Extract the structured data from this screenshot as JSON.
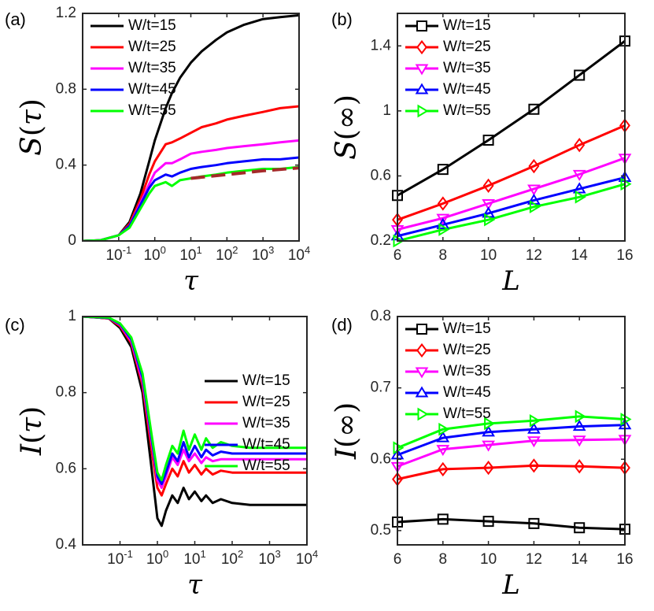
{
  "chart_data": [
    {
      "panel": "(a)",
      "type": "line",
      "ylabel_symbol": "S",
      "ylabel_arg": "τ",
      "xlabel": "τ",
      "xscale": "log",
      "xlim": [
        0.01,
        10000
      ],
      "ylim": [
        0,
        1.2
      ],
      "xticks": [
        {
          "exp": "-1",
          "value": 0.1
        },
        {
          "exp": "0",
          "value": 1
        },
        {
          "exp": "1",
          "value": 10
        },
        {
          "exp": "2",
          "value": 100
        },
        {
          "exp": "3",
          "value": 1000
        },
        {
          "exp": "4",
          "value": 10000
        }
      ],
      "yticks": [
        {
          "label": "0",
          "value": 0
        },
        {
          "label": "0.4",
          "value": 0.4
        },
        {
          "label": "0.8",
          "value": 0.8
        },
        {
          "label": "1.2",
          "value": 1.2
        }
      ],
      "legend_position": "top-left",
      "series": [
        {
          "name": "W/t=15",
          "color": "#000000",
          "x": [
            0.01,
            0.03,
            0.1,
            0.2,
            0.4,
            0.7,
            1,
            2,
            3,
            5,
            10,
            20,
            50,
            100,
            300,
            1000,
            3000,
            10000
          ],
          "y": [
            0,
            0.003,
            0.03,
            0.1,
            0.25,
            0.42,
            0.53,
            0.7,
            0.78,
            0.86,
            0.94,
            1.0,
            1.06,
            1.1,
            1.14,
            1.17,
            1.18,
            1.19
          ]
        },
        {
          "name": "W/t=25",
          "color": "#ff0000",
          "x": [
            0.01,
            0.03,
            0.1,
            0.2,
            0.4,
            0.7,
            1,
            2,
            3,
            5,
            10,
            20,
            50,
            100,
            300,
            1000,
            3000,
            10000
          ],
          "y": [
            0,
            0.003,
            0.03,
            0.09,
            0.22,
            0.35,
            0.42,
            0.51,
            0.52,
            0.54,
            0.57,
            0.6,
            0.62,
            0.64,
            0.66,
            0.68,
            0.7,
            0.71
          ]
        },
        {
          "name": "W/t=35",
          "color": "#ff00ff",
          "x": [
            0.01,
            0.03,
            0.1,
            0.2,
            0.4,
            0.7,
            1,
            2,
            3,
            5,
            10,
            20,
            50,
            100,
            300,
            1000,
            3000,
            10000
          ],
          "y": [
            0,
            0.003,
            0.03,
            0.08,
            0.2,
            0.3,
            0.36,
            0.41,
            0.41,
            0.43,
            0.46,
            0.47,
            0.48,
            0.49,
            0.5,
            0.51,
            0.52,
            0.53
          ]
        },
        {
          "name": "W/t=45",
          "color": "#0000ff",
          "x": [
            0.01,
            0.03,
            0.1,
            0.2,
            0.4,
            0.7,
            1,
            2,
            3,
            5,
            10,
            20,
            50,
            100,
            300,
            1000,
            3000,
            10000
          ],
          "y": [
            0,
            0.003,
            0.03,
            0.08,
            0.19,
            0.28,
            0.32,
            0.35,
            0.34,
            0.36,
            0.38,
            0.39,
            0.4,
            0.41,
            0.42,
            0.43,
            0.43,
            0.44
          ]
        },
        {
          "name": "W/t=55",
          "color": "#00ff00",
          "x": [
            0.01,
            0.03,
            0.1,
            0.2,
            0.4,
            0.7,
            1,
            2,
            3,
            5,
            10,
            20,
            50,
            100,
            300,
            1000,
            3000,
            10000
          ],
          "y": [
            0,
            0.003,
            0.03,
            0.07,
            0.17,
            0.25,
            0.29,
            0.31,
            0.29,
            0.32,
            0.33,
            0.34,
            0.35,
            0.36,
            0.37,
            0.38,
            0.38,
            0.39
          ]
        }
      ],
      "fit_line": {
        "color": "#a52a2a",
        "style": "dashed",
        "x": [
          10,
          100,
          1000,
          10000
        ],
        "y": [
          0.33,
          0.35,
          0.37,
          0.385
        ]
      }
    },
    {
      "panel": "(b)",
      "type": "line",
      "ylabel_symbol": "S",
      "ylabel_arg": "∞",
      "xlabel": "L",
      "xscale": "linear",
      "xlim": [
        6,
        16
      ],
      "ylim": [
        0.2,
        1.6
      ],
      "xticks": [
        {
          "label": "6",
          "value": 6
        },
        {
          "label": "8",
          "value": 8
        },
        {
          "label": "10",
          "value": 10
        },
        {
          "label": "12",
          "value": 12
        },
        {
          "label": "14",
          "value": 14
        },
        {
          "label": "16",
          "value": 16
        }
      ],
      "yticks": [
        {
          "label": "0.2",
          "value": 0.2
        },
        {
          "label": "0.6",
          "value": 0.6
        },
        {
          "label": "1",
          "value": 1.0
        },
        {
          "label": "1.4",
          "value": 1.4
        }
      ],
      "legend_position": "top-left",
      "series": [
        {
          "name": "W/t=15",
          "color": "#000000",
          "marker": "square",
          "x": [
            6,
            8,
            10,
            12,
            14,
            16
          ],
          "y": [
            0.48,
            0.64,
            0.82,
            1.01,
            1.22,
            1.43
          ]
        },
        {
          "name": "W/t=25",
          "color": "#ff0000",
          "marker": "diamond",
          "x": [
            6,
            8,
            10,
            12,
            14,
            16
          ],
          "y": [
            0.33,
            0.43,
            0.54,
            0.66,
            0.79,
            0.91
          ]
        },
        {
          "name": "W/t=35",
          "color": "#ff00ff",
          "marker": "triangle-down",
          "x": [
            6,
            8,
            10,
            12,
            14,
            16
          ],
          "y": [
            0.27,
            0.34,
            0.43,
            0.52,
            0.61,
            0.71
          ]
        },
        {
          "name": "W/t=45",
          "color": "#0000ff",
          "marker": "triangle-up",
          "x": [
            6,
            8,
            10,
            12,
            14,
            16
          ],
          "y": [
            0.23,
            0.3,
            0.37,
            0.45,
            0.52,
            0.59
          ]
        },
        {
          "name": "W/t=55",
          "color": "#00ff00",
          "marker": "triangle-right",
          "x": [
            6,
            8,
            10,
            12,
            14,
            16
          ],
          "y": [
            0.2,
            0.27,
            0.33,
            0.41,
            0.47,
            0.55
          ]
        }
      ]
    },
    {
      "panel": "(c)",
      "type": "line",
      "ylabel_symbol": "I",
      "ylabel_arg": "τ",
      "xlabel": "τ",
      "xscale": "log",
      "xlim": [
        0.01,
        10000
      ],
      "ylim": [
        0.4,
        1.0
      ],
      "xticks": [
        {
          "exp": "-1",
          "value": 0.1
        },
        {
          "exp": "0",
          "value": 1
        },
        {
          "exp": "1",
          "value": 10
        },
        {
          "exp": "2",
          "value": 100
        },
        {
          "exp": "3",
          "value": 1000
        },
        {
          "exp": "4",
          "value": 10000
        }
      ],
      "yticks": [
        {
          "label": "0.4",
          "value": 0.4
        },
        {
          "label": "0.6",
          "value": 0.6
        },
        {
          "label": "0.8",
          "value": 0.8
        },
        {
          "label": "1",
          "value": 1.0
        }
      ],
      "legend_position": "top-right",
      "series": [
        {
          "name": "W/t=15",
          "color": "#000000",
          "x": [
            0.01,
            0.05,
            0.1,
            0.2,
            0.4,
            0.7,
            1,
            1.3,
            1.7,
            2.5,
            3.5,
            5,
            7,
            10,
            15,
            20,
            30,
            50,
            100,
            300,
            1000,
            3000,
            10000
          ],
          "y": [
            1.0,
            0.995,
            0.97,
            0.92,
            0.8,
            0.6,
            0.47,
            0.45,
            0.49,
            0.53,
            0.51,
            0.55,
            0.52,
            0.54,
            0.515,
            0.53,
            0.51,
            0.52,
            0.51,
            0.505,
            0.505,
            0.505,
            0.505
          ]
        },
        {
          "name": "W/t=25",
          "color": "#ff0000",
          "x": [
            0.01,
            0.05,
            0.1,
            0.2,
            0.4,
            0.7,
            1,
            1.3,
            1.7,
            2.5,
            3.5,
            5,
            7,
            10,
            15,
            20,
            30,
            50,
            100,
            300,
            1000,
            3000,
            10000
          ],
          "y": [
            1.0,
            0.995,
            0.975,
            0.93,
            0.82,
            0.65,
            0.55,
            0.53,
            0.56,
            0.6,
            0.58,
            0.62,
            0.59,
            0.61,
            0.585,
            0.6,
            0.585,
            0.595,
            0.59,
            0.59,
            0.59,
            0.59,
            0.59
          ]
        },
        {
          "name": "W/t=35",
          "color": "#ff00ff",
          "x": [
            0.01,
            0.05,
            0.1,
            0.2,
            0.4,
            0.7,
            1,
            1.3,
            1.7,
            2.5,
            3.5,
            5,
            7,
            10,
            15,
            20,
            30,
            50,
            100,
            300,
            1000,
            3000,
            10000
          ],
          "y": [
            1.0,
            0.996,
            0.978,
            0.935,
            0.83,
            0.67,
            0.57,
            0.55,
            0.58,
            0.63,
            0.61,
            0.65,
            0.62,
            0.64,
            0.615,
            0.63,
            0.62,
            0.625,
            0.625,
            0.625,
            0.625,
            0.625,
            0.625
          ]
        },
        {
          "name": "W/t=45",
          "color": "#0000ff",
          "x": [
            0.01,
            0.05,
            0.1,
            0.2,
            0.4,
            0.7,
            1,
            1.3,
            1.7,
            2.5,
            3.5,
            5,
            7,
            10,
            15,
            20,
            30,
            50,
            100,
            300,
            1000,
            3000,
            10000
          ],
          "y": [
            1.0,
            0.996,
            0.98,
            0.94,
            0.84,
            0.68,
            0.58,
            0.56,
            0.59,
            0.64,
            0.62,
            0.67,
            0.63,
            0.66,
            0.63,
            0.65,
            0.635,
            0.645,
            0.64,
            0.64,
            0.64,
            0.64,
            0.64
          ]
        },
        {
          "name": "W/t=55",
          "color": "#00ff00",
          "x": [
            0.01,
            0.05,
            0.1,
            0.2,
            0.4,
            0.7,
            1,
            1.3,
            1.7,
            2.5,
            3.5,
            5,
            7,
            10,
            15,
            20,
            30,
            50,
            100,
            300,
            1000,
            3000,
            10000
          ],
          "y": [
            1.0,
            0.997,
            0.982,
            0.945,
            0.85,
            0.69,
            0.59,
            0.57,
            0.61,
            0.66,
            0.64,
            0.7,
            0.65,
            0.69,
            0.65,
            0.68,
            0.655,
            0.67,
            0.66,
            0.655,
            0.655,
            0.655,
            0.655
          ]
        }
      ]
    },
    {
      "panel": "(d)",
      "type": "line",
      "ylabel_symbol": "I",
      "ylabel_arg": "∞",
      "xlabel": "L",
      "xscale": "linear",
      "xlim": [
        6,
        16
      ],
      "ylim": [
        0.48,
        0.8
      ],
      "xticks": [
        {
          "label": "6",
          "value": 6
        },
        {
          "label": "8",
          "value": 8
        },
        {
          "label": "10",
          "value": 10
        },
        {
          "label": "12",
          "value": 12
        },
        {
          "label": "14",
          "value": 14
        },
        {
          "label": "16",
          "value": 16
        }
      ],
      "yticks": [
        {
          "label": "0.5",
          "value": 0.5
        },
        {
          "label": "0.6",
          "value": 0.6
        },
        {
          "label": "0.7",
          "value": 0.7
        },
        {
          "label": "0.8",
          "value": 0.8
        }
      ],
      "legend_position": "top-left",
      "series": [
        {
          "name": "W/t=15",
          "color": "#000000",
          "marker": "square",
          "x": [
            6,
            8,
            10,
            12,
            14,
            16
          ],
          "y": [
            0.512,
            0.516,
            0.513,
            0.51,
            0.504,
            0.502
          ]
        },
        {
          "name": "W/t=25",
          "color": "#ff0000",
          "marker": "diamond",
          "x": [
            6,
            8,
            10,
            12,
            14,
            16
          ],
          "y": [
            0.572,
            0.586,
            0.588,
            0.591,
            0.59,
            0.588
          ]
        },
        {
          "name": "W/t=35",
          "color": "#ff00ff",
          "marker": "triangle-down",
          "x": [
            6,
            8,
            10,
            12,
            14,
            16
          ],
          "y": [
            0.59,
            0.614,
            0.62,
            0.626,
            0.627,
            0.628
          ]
        },
        {
          "name": "W/t=45",
          "color": "#0000ff",
          "marker": "triangle-up",
          "x": [
            6,
            8,
            10,
            12,
            14,
            16
          ],
          "y": [
            0.606,
            0.63,
            0.638,
            0.642,
            0.646,
            0.648
          ]
        },
        {
          "name": "W/t=55",
          "color": "#00ff00",
          "marker": "triangle-right",
          "x": [
            6,
            8,
            10,
            12,
            14,
            16
          ],
          "y": [
            0.616,
            0.642,
            0.65,
            0.654,
            0.66,
            0.656
          ]
        }
      ]
    }
  ]
}
